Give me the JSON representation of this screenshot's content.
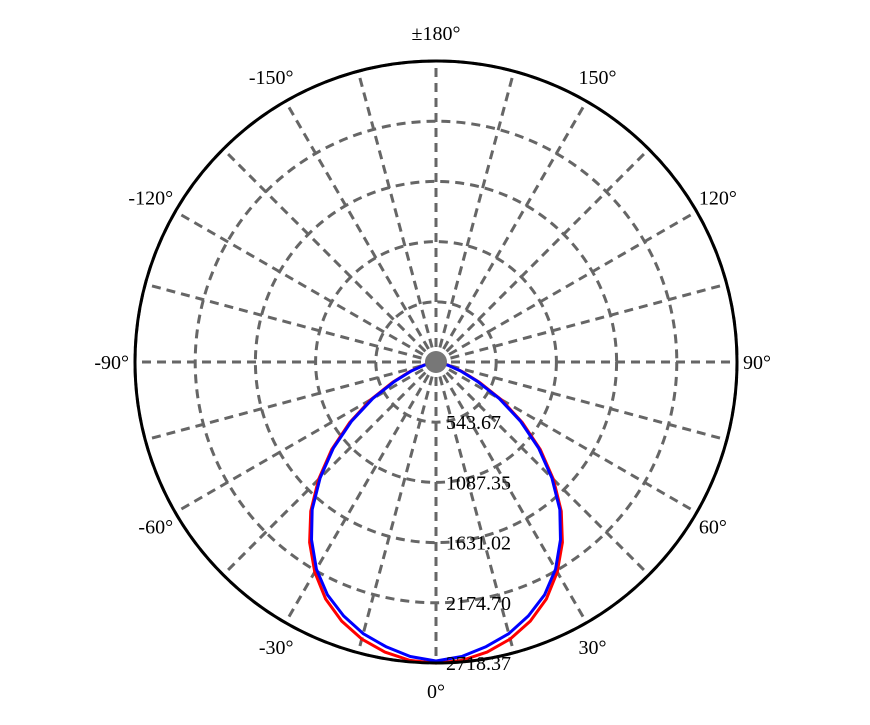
{
  "chart_data": {
    "type": "polar",
    "angle_unit": "degrees",
    "angle_zero": "bottom",
    "angle_direction": "counter-clockwise-positive-right",
    "angle_ticks": [
      {
        "angle": 0,
        "label": "0°"
      },
      {
        "angle": 30,
        "label": "30°"
      },
      {
        "angle": 60,
        "label": "60°"
      },
      {
        "angle": 90,
        "label": "90°"
      },
      {
        "angle": 120,
        "label": "120°"
      },
      {
        "angle": 150,
        "label": "150°"
      },
      {
        "angle": 180,
        "label": "±180°"
      },
      {
        "angle": -150,
        "label": "-150°"
      },
      {
        "angle": -120,
        "label": "-120°"
      },
      {
        "angle": -90,
        "label": "-90°"
      },
      {
        "angle": -60,
        "label": "-60°"
      },
      {
        "angle": -30,
        "label": "-30°"
      }
    ],
    "radial_ticks": [
      {
        "value": 543.67,
        "label": "543.67"
      },
      {
        "value": 1087.35,
        "label": "1087.35"
      },
      {
        "value": 1631.02,
        "label": "1631.02"
      },
      {
        "value": 2174.7,
        "label": "2174.70"
      },
      {
        "value": 2718.37,
        "label": "2718.37"
      }
    ],
    "rlim": [
      0,
      2718.37
    ],
    "grid": true,
    "spoke_step_deg": 15,
    "series": [
      {
        "color": "#ff0000",
        "angles": [
          0,
          5,
          10,
          15,
          20,
          25,
          30,
          35,
          40,
          45,
          50,
          55,
          60,
          65,
          70,
          75,
          80,
          85,
          90
        ],
        "values": [
          2720,
          2705,
          2660,
          2590,
          2490,
          2360,
          2190,
          1990,
          1760,
          1500,
          1230,
          950,
          680,
          430,
          250,
          120,
          50,
          15,
          0
        ],
        "symmetric": true
      },
      {
        "color": "#0000ff",
        "angles": [
          0,
          5,
          10,
          15,
          20,
          25,
          30,
          35,
          40,
          45,
          50,
          55,
          60,
          65,
          70,
          75,
          80,
          85,
          90
        ],
        "values": [
          2700,
          2670,
          2610,
          2540,
          2440,
          2320,
          2160,
          1960,
          1740,
          1480,
          1210,
          930,
          660,
          410,
          235,
          110,
          45,
          12,
          0
        ],
        "symmetric": true
      }
    ]
  }
}
